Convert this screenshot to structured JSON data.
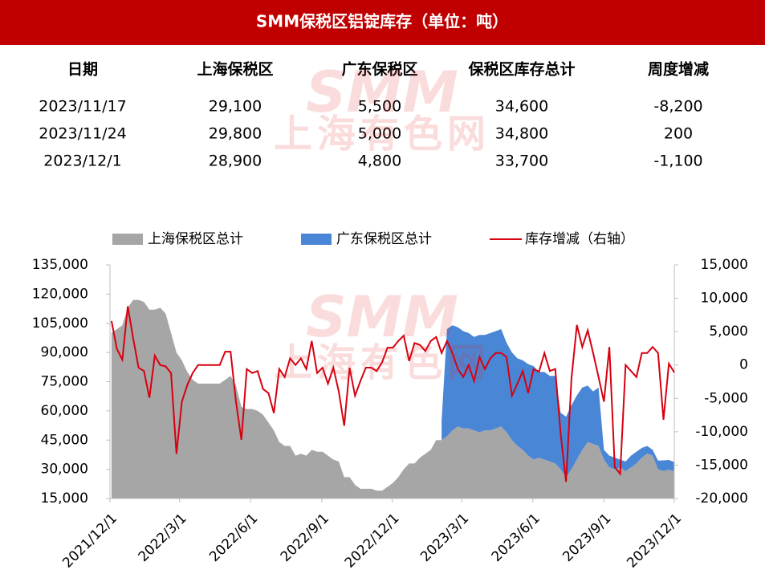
{
  "header": {
    "title": "SMM保税区铝锭库存（单位：吨）"
  },
  "watermark": {
    "logo": "SMM",
    "name": "上海有色网"
  },
  "table": {
    "columns": [
      "日期",
      "上海保税区",
      "广东保税区",
      "保税区库存总计",
      "周度增减"
    ],
    "rows": [
      [
        "2023/11/17",
        "29,100",
        "5,500",
        "34,600",
        "-8,200"
      ],
      [
        "2023/11/24",
        "29,800",
        "5,000",
        "34,800",
        "200"
      ],
      [
        "2023/12/1",
        "28,900",
        "4,800",
        "33,700",
        "-1,100"
      ]
    ]
  },
  "chart_data": {
    "type": "area",
    "stacked": true,
    "legend": "top",
    "x": [
      "2021/12/3",
      "2021/12/10",
      "2021/12/17",
      "2021/12/24",
      "2021/12/31",
      "2022/1/7",
      "2022/1/14",
      "2022/1/21",
      "2022/1/28",
      "2022/2/4",
      "2022/2/11",
      "2022/2/18",
      "2022/2/25",
      "2022/3/4",
      "2022/3/11",
      "2022/3/18",
      "2022/3/25",
      "2022/4/1",
      "2022/4/8",
      "2022/4/15",
      "2022/4/22",
      "2022/4/29",
      "2022/5/6",
      "2022/5/13",
      "2022/5/20",
      "2022/5/27",
      "2022/6/3",
      "2022/6/10",
      "2022/6/17",
      "2022/6/24",
      "2022/7/1",
      "2022/7/8",
      "2022/7/15",
      "2022/7/22",
      "2022/7/29",
      "2022/8/5",
      "2022/8/12",
      "2022/8/19",
      "2022/8/26",
      "2022/9/2",
      "2022/9/9",
      "2022/9/16",
      "2022/9/23",
      "2022/9/30",
      "2022/10/7",
      "2022/10/14",
      "2022/10/21",
      "2022/10/28",
      "2022/11/4",
      "2022/11/11",
      "2022/11/18",
      "2022/11/25",
      "2022/12/2",
      "2022/12/9",
      "2022/12/16",
      "2022/12/23",
      "2022/12/30",
      "2023/1/6",
      "2023/1/13",
      "2023/1/20",
      "2023/1/27",
      "2023/2/3",
      "2023/2/10",
      "2023/2/17",
      "2023/2/24",
      "2023/3/3",
      "2023/3/10",
      "2023/3/17",
      "2023/3/24",
      "2023/3/31",
      "2023/4/7",
      "2023/4/14",
      "2023/4/21",
      "2023/4/28",
      "2023/5/5",
      "2023/5/12",
      "2023/5/19",
      "2023/5/26",
      "2023/6/2",
      "2023/6/9",
      "2023/6/16",
      "2023/6/23",
      "2023/6/30",
      "2023/7/7",
      "2023/7/14",
      "2023/7/21",
      "2023/7/28",
      "2023/8/4",
      "2023/8/11",
      "2023/8/18",
      "2023/8/25",
      "2023/9/1",
      "2023/9/8",
      "2023/9/15",
      "2023/9/22",
      "2023/9/29",
      "2023/10/6",
      "2023/10/13",
      "2023/10/20",
      "2023/10/27",
      "2023/11/3",
      "2023/11/10",
      "2023/11/17",
      "2023/11/24",
      "2023/12/1"
    ],
    "series": [
      {
        "name": "上海保税区总计",
        "color": "#a6a6a6",
        "values": [
          100000,
          102000,
          104000,
          113000,
          117000,
          117000,
          116000,
          112000,
          112000,
          113000,
          110000,
          100000,
          90000,
          86000,
          80000,
          76000,
          74000,
          74000,
          74000,
          74000,
          74000,
          76000,
          78000,
          73000,
          62000,
          61000,
          61000,
          60000,
          58000,
          54000,
          50000,
          44000,
          42000,
          42000,
          37000,
          38000,
          37000,
          40000,
          39000,
          39000,
          37000,
          35000,
          34000,
          26000,
          26000,
          22000,
          20000,
          20000,
          20000,
          19000,
          19000,
          21000,
          23000,
          26000,
          30000,
          33000,
          33000,
          36000,
          38000,
          40000,
          45000,
          45000,
          47000,
          50000,
          52000,
          51000,
          51000,
          50000,
          49000,
          50000,
          50000,
          51000,
          52000,
          49000,
          45000,
          42000,
          40000,
          37000,
          35000,
          36000,
          35000,
          34000,
          33000,
          30000,
          26000,
          30000,
          35000,
          40000,
          44000,
          43000,
          42000,
          35000,
          31000,
          30000,
          31000,
          29000,
          31000,
          33000,
          36000,
          38000,
          37000,
          30000,
          29100,
          29800,
          28900
        ]
      },
      {
        "name": "广东保税区总计",
        "color": "#4a86d6",
        "values": [
          null,
          null,
          null,
          null,
          null,
          null,
          null,
          null,
          null,
          null,
          null,
          null,
          null,
          null,
          null,
          null,
          null,
          null,
          null,
          null,
          null,
          null,
          null,
          null,
          null,
          null,
          null,
          null,
          null,
          null,
          null,
          null,
          null,
          null,
          null,
          null,
          null,
          null,
          null,
          null,
          null,
          null,
          null,
          null,
          null,
          null,
          null,
          null,
          null,
          null,
          null,
          null,
          null,
          null,
          null,
          null,
          null,
          null,
          null,
          null,
          null,
          10000,
          55000,
          54000,
          51000,
          50000,
          49000,
          48000,
          50000,
          49000,
          50000,
          50000,
          50000,
          46000,
          45000,
          45000,
          46000,
          47000,
          48000,
          44000,
          45000,
          44000,
          45000,
          29000,
          31000,
          33000,
          33000,
          32000,
          29000,
          27000,
          30000,
          5000,
          6000,
          6000,
          4000,
          5000,
          6000,
          6000,
          5000,
          4000,
          3000,
          4500,
          5500,
          5000,
          4800
        ]
      },
      {
        "name": "库存增减（右轴）",
        "type": "line",
        "axis": "y2",
        "color": "#d7000f",
        "values": [
          6600,
          2400,
          800,
          8800,
          4000,
          -400,
          -900,
          -4900,
          1400,
          0,
          -200,
          -1200,
          -13300,
          -5500,
          -3000,
          -1200,
          0,
          0,
          0,
          0,
          0,
          2000,
          2000,
          -5500,
          -11200,
          -600,
          -1200,
          -900,
          -3600,
          -4200,
          -7200,
          -600,
          -1800,
          1000,
          0,
          1000,
          -600,
          3600,
          -1200,
          -400,
          -2800,
          -400,
          -4000,
          -9100,
          -400,
          -4600,
          -2400,
          -400,
          -400,
          -900,
          400,
          2600,
          2600,
          3600,
          4400,
          600,
          3300,
          3000,
          2100,
          3600,
          4200,
          1800,
          3600,
          1800,
          -600,
          -1800,
          0,
          -2400,
          1200,
          -600,
          1000,
          1800,
          1800,
          1200,
          -4600,
          -2800,
          -900,
          -4200,
          -600,
          -1000,
          1800,
          -900,
          -600,
          -10300,
          -17500,
          -2000,
          6000,
          2700,
          5200,
          1800,
          -1800,
          -5500,
          2700,
          -15300,
          -16300,
          0,
          -900,
          -1800,
          1800,
          1800,
          2700,
          1800,
          -8200,
          200,
          -1100
        ]
      }
    ],
    "xlim": [
      "2021/12/1",
      "2023/12/1"
    ],
    "xticks": [
      "2021/12/1",
      "2022/3/1",
      "2022/6/1",
      "2022/9/1",
      "2022/12/1",
      "2023/3/1",
      "2023/6/1",
      "2023/9/1",
      "2023/12/1"
    ],
    "ylim": [
      15000,
      135000
    ],
    "yticks": [
      {
        "value": 15000,
        "label": "15,000"
      },
      {
        "value": 30000,
        "label": "30,000"
      },
      {
        "value": 45000,
        "label": "45,000"
      },
      {
        "value": 60000,
        "label": "60,000"
      },
      {
        "value": 75000,
        "label": "75,000"
      },
      {
        "value": 90000,
        "label": "90,000"
      },
      {
        "value": 105000,
        "label": "105,000"
      },
      {
        "value": 120000,
        "label": "120,000"
      },
      {
        "value": 135000,
        "label": "135,000"
      }
    ],
    "y2lim": [
      -20000,
      15000
    ],
    "y2ticks": [
      {
        "value": -20000,
        "label": "-20,000"
      },
      {
        "value": -15000,
        "label": "-15,000"
      },
      {
        "value": -10000,
        "label": "-10,000"
      },
      {
        "value": -5000,
        "label": "-5,000"
      },
      0,
      {
        "value": 5000,
        "label": "5,000"
      },
      {
        "value": 10000,
        "label": "10,000"
      },
      {
        "value": 15000,
        "label": "15,000"
      }
    ]
  }
}
